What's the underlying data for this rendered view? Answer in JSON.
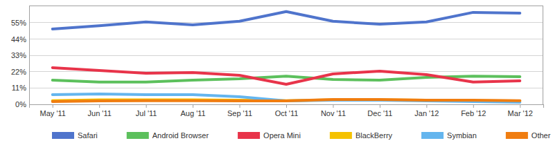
{
  "chart_data": {
    "type": "line",
    "categories": [
      "May '11",
      "Jun '11",
      "Jul '11",
      "Aug '11",
      "Sep '11",
      "Oct '11",
      "Nov '11",
      "Dec '11",
      "Jan '12",
      "Feb '12",
      "Mar '12"
    ],
    "series": [
      {
        "name": "Safari",
        "color": "#4f74cc",
        "values": [
          50.8,
          53,
          55.5,
          53.6,
          56,
          62.5,
          56,
          54,
          55.5,
          62,
          61.5
        ]
      },
      {
        "name": "Android Browser",
        "color": "#5cc05c",
        "values": [
          16.3,
          15,
          15,
          16.3,
          17.2,
          19,
          16.8,
          16.3,
          18.2,
          19,
          18.6
        ]
      },
      {
        "name": "Opera Mini",
        "color": "#e8344a",
        "values": [
          24.7,
          22.8,
          21,
          21.4,
          19.6,
          13.5,
          20.5,
          22.4,
          20,
          15,
          15.8
        ]
      },
      {
        "name": "BlackBerry",
        "color": "#f5c200",
        "values": [
          2.5,
          3,
          3,
          3,
          2.8,
          2.5,
          3,
          3,
          2.8,
          2.5,
          2.3
        ]
      },
      {
        "name": "Symbian",
        "color": "#64b5ee",
        "values": [
          6.5,
          7,
          6.5,
          6.5,
          5.1,
          2.3,
          2.8,
          2.8,
          2.3,
          1.9,
          1.4
        ]
      },
      {
        "name": "Other",
        "color": "#f07d10",
        "values": [
          1.9,
          2.3,
          2.5,
          2.5,
          2.3,
          2.3,
          3.3,
          3.3,
          2.8,
          2.8,
          2.5
        ]
      }
    ],
    "ylim": [
      0,
      66.6
    ],
    "yticks": [
      {
        "value": 0,
        "label": "0%"
      },
      {
        "value": 11,
        "label": "11%"
      },
      {
        "value": 22,
        "label": "22%"
      },
      {
        "value": 33,
        "label": "33%"
      },
      {
        "value": 44,
        "label": "44%"
      },
      {
        "value": 55,
        "label": "55%"
      }
    ],
    "grid": true,
    "legend": "bottom"
  }
}
